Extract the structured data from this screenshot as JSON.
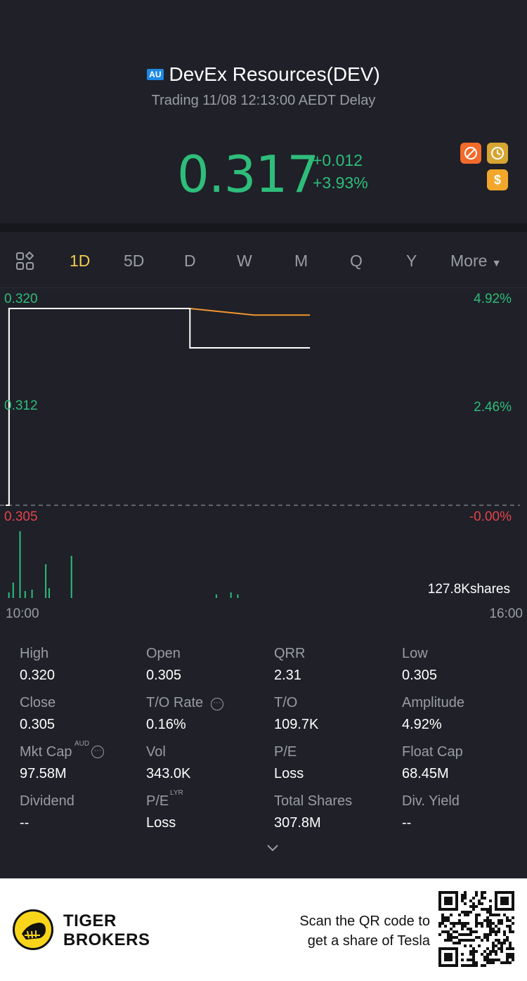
{
  "header": {
    "market_badge": "AU",
    "title": "DevEx Resources(DEV)",
    "status": "Trading 11/08 12:13:00 AEDT Delay",
    "price": "0.317",
    "change_abs": "+0.012",
    "change_pct": "+3.93%",
    "icons": [
      "no-short-icon",
      "clock-icon",
      "dollar-icon"
    ],
    "colors": {
      "up": "#2ebd7a",
      "down": "#e5434b",
      "accent": "#f2c94c"
    }
  },
  "tabs": {
    "items": [
      "1D",
      "5D",
      "D",
      "W",
      "M",
      "Q",
      "Y"
    ],
    "active": "1D",
    "more": "More"
  },
  "chart_data": {
    "type": "line",
    "title": "",
    "x_range": [
      "10:00",
      "16:00"
    ],
    "y_range": [
      0.305,
      0.32
    ],
    "reference_price": 0.305,
    "y_labels_left": [
      "0.320",
      "0.312",
      "0.305"
    ],
    "y_labels_right": [
      "4.92%",
      "2.46%",
      "-0.00%"
    ],
    "x_labels": [
      "10:00",
      "16:00"
    ],
    "volume_label": "127.8Kshares",
    "series": [
      {
        "values_desc": "price",
        "color": "#ffffff",
        "x": [
          0,
          0.04,
          0.04,
          2.15,
          2.15,
          3.55
        ],
        "y": [
          0.305,
          0.305,
          0.32,
          0.32,
          0.317,
          0.317
        ]
      },
      {
        "values_desc": "average",
        "color": "#f0962d",
        "x": [
          0,
          0.04,
          0.04,
          2.15,
          2.9,
          3.55
        ],
        "y": [
          0.305,
          0.305,
          0.32,
          0.32,
          0.3195,
          0.3195
        ]
      }
    ],
    "volume": [
      {
        "t": 0.03,
        "v": 8
      },
      {
        "t": 0.08,
        "v": 22
      },
      {
        "t": 0.16,
        "v": 95
      },
      {
        "t": 0.22,
        "v": 10
      },
      {
        "t": 0.3,
        "v": 12
      },
      {
        "t": 0.46,
        "v": 48
      },
      {
        "t": 0.5,
        "v": 14
      },
      {
        "t": 0.76,
        "v": 60
      },
      {
        "t": 2.45,
        "v": 5
      },
      {
        "t": 2.62,
        "v": 8
      },
      {
        "t": 2.7,
        "v": 5
      }
    ]
  },
  "stats": [
    {
      "label": "High",
      "value": "0.320"
    },
    {
      "label": "Open",
      "value": "0.305"
    },
    {
      "label": "QRR",
      "value": "2.31"
    },
    {
      "label": "Low",
      "value": "0.305"
    },
    {
      "label": "Close",
      "value": "0.305"
    },
    {
      "label": "T/O Rate",
      "value": "0.16%"
    },
    {
      "label": "T/O",
      "value": "109.7K"
    },
    {
      "label": "Amplitude",
      "value": "4.92%"
    },
    {
      "label": "Mkt Cap",
      "value": "97.58M",
      "sup": "AUD"
    },
    {
      "label": "Vol",
      "value": "343.0K"
    },
    {
      "label": "P/E",
      "value": "Loss"
    },
    {
      "label": "Float Cap",
      "value": "68.45M"
    },
    {
      "label": "Dividend",
      "value": "--"
    },
    {
      "label": "P/E",
      "value": "Loss",
      "sup": "LYR"
    },
    {
      "label": "Total Shares",
      "value": "307.8M"
    },
    {
      "label": "Div. Yield",
      "value": "--"
    }
  ],
  "footer": {
    "brand_line1": "TIGER",
    "brand_line2": "BROKERS",
    "scan_line1": "Scan the QR code to",
    "scan_line2": "get a share of Tesla"
  }
}
